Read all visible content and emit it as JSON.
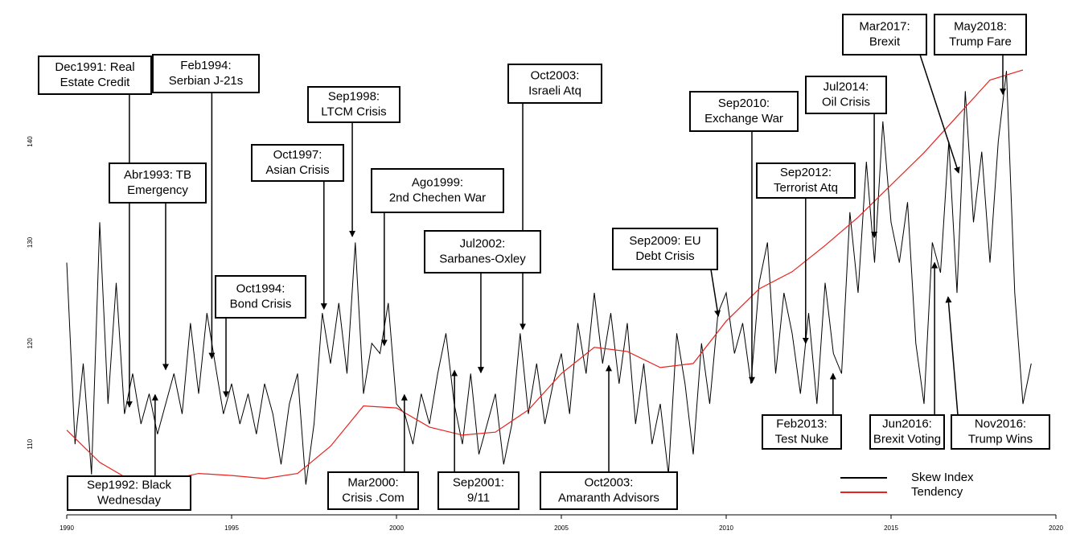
{
  "chart_data": {
    "type": "line",
    "xlim": [
      1990,
      2020
    ],
    "ylim": [
      103,
      153
    ],
    "xticks": [
      1990,
      1995,
      2000,
      2005,
      2010,
      2015,
      2020
    ],
    "yticks": [
      110,
      120,
      130,
      140
    ],
    "legend": "bottom-right",
    "series": [
      {
        "name": "Skew Index",
        "color": "#000000",
        "x": [
          1990,
          1990.25,
          1990.5,
          1990.75,
          1991,
          1991.25,
          1991.5,
          1991.75,
          1992,
          1992.25,
          1992.5,
          1992.75,
          1993,
          1993.25,
          1993.5,
          1993.75,
          1994,
          1994.25,
          1994.5,
          1994.75,
          1995,
          1995.25,
          1995.5,
          1995.75,
          1996,
          1996.25,
          1996.5,
          1996.75,
          1997,
          1997.25,
          1997.5,
          1997.75,
          1998,
          1998.25,
          1998.5,
          1998.75,
          1999,
          1999.25,
          1999.5,
          1999.75,
          2000,
          2000.25,
          2000.5,
          2000.75,
          2001,
          2001.25,
          2001.5,
          2001.75,
          2002,
          2002.25,
          2002.5,
          2002.75,
          2003,
          2003.25,
          2003.5,
          2003.75,
          2004,
          2004.25,
          2004.5,
          2004.75,
          2005,
          2005.25,
          2005.5,
          2005.75,
          2006,
          2006.25,
          2006.5,
          2006.75,
          2007,
          2007.25,
          2007.5,
          2007.75,
          2008,
          2008.25,
          2008.5,
          2008.75,
          2009,
          2009.25,
          2009.5,
          2009.75,
          2010,
          2010.25,
          2010.5,
          2010.75,
          2011,
          2011.25,
          2011.5,
          2011.75,
          2012,
          2012.25,
          2012.5,
          2012.75,
          2013,
          2013.25,
          2013.5,
          2013.75,
          2014,
          2014.25,
          2014.5,
          2014.75,
          2015,
          2015.25,
          2015.5,
          2015.75,
          2016,
          2016.25,
          2016.5,
          2016.75,
          2017,
          2017.25,
          2017.5,
          2017.75,
          2018,
          2018.25,
          2018.5,
          2018.75,
          2019,
          2019.25
        ],
        "values": [
          128,
          110,
          118,
          107,
          132,
          114,
          126,
          113,
          117,
          112,
          115,
          111,
          114,
          117,
          113,
          122,
          115,
          123,
          118,
          113,
          116,
          112,
          115,
          111,
          116,
          113,
          108,
          114,
          117,
          106,
          112,
          123,
          118,
          124,
          117,
          130,
          115,
          120,
          119,
          124,
          114,
          113,
          110,
          115,
          112,
          117,
          121,
          114,
          110,
          117,
          109,
          112,
          115,
          108,
          112,
          121,
          113,
          118,
          112,
          116,
          119,
          113,
          122,
          117,
          125,
          118,
          123,
          116,
          122,
          112,
          118,
          110,
          114,
          107,
          121,
          116,
          109,
          120,
          114,
          123,
          125,
          119,
          122,
          116,
          126,
          130,
          117,
          125,
          121,
          115,
          123,
          114,
          126,
          119,
          117,
          133,
          125,
          138,
          128,
          142,
          132,
          128,
          134,
          120,
          114,
          130,
          127,
          140,
          125,
          145,
          132,
          139,
          128,
          140,
          147,
          125,
          114,
          118
        ]
      },
      {
        "name": "Tendency",
        "color": "#e8231f",
        "x": [
          1990,
          1991,
          1992,
          1993,
          1994,
          1995,
          1996,
          1997,
          1998,
          1999,
          2000,
          2001,
          2002,
          2003,
          2004,
          2005,
          2006,
          2007,
          2008,
          2009,
          2010,
          2011,
          2012,
          2013,
          2014,
          2015,
          2016,
          2017,
          2018,
          2019
        ],
        "values": [
          111.4,
          108.2,
          106.3,
          106.4,
          107.1,
          106.9,
          106.6,
          107.1,
          109.8,
          113.8,
          113.6,
          111.7,
          110.9,
          111.2,
          113.4,
          117.0,
          119.6,
          119.2,
          117.6,
          118.0,
          122.2,
          125.4,
          127.1,
          129.7,
          132.5,
          135.7,
          138.9,
          142.5,
          146.1,
          147.1
        ]
      }
    ],
    "annotations": [
      {
        "lines": [
          "Dec1991: Real",
          "Estate Credit"
        ],
        "x": 1991.9,
        "y": 113.7
      },
      {
        "lines": [
          "Feb1994:",
          "Serbian J-21s"
        ],
        "x": 1994.4,
        "y": 118.5
      },
      {
        "lines": [
          "Abr1993: TB",
          "Emergency"
        ],
        "x": 1993.0,
        "y": 117.4
      },
      {
        "lines": [
          "Sep1998:",
          "LTCM Crisis"
        ],
        "x": 1998.66,
        "y": 130.6
      },
      {
        "lines": [
          "Oct1997:",
          "Asian Crisis"
        ],
        "x": 1997.8,
        "y": 123.4
      },
      {
        "lines": [
          "Ago1999:",
          "2nd Chechen War"
        ],
        "x": 1999.63,
        "y": 119.8
      },
      {
        "lines": [
          "Oct1994:",
          "Bond Crisis"
        ],
        "x": 1994.83,
        "y": 114.7
      },
      {
        "lines": [
          "Oct2003:",
          "Israeli Atq"
        ],
        "x": 2003.83,
        "y": 121.4
      },
      {
        "lines": [
          "Jul2002:",
          "Sarbanes-Oxley"
        ],
        "x": 2002.56,
        "y": 117.1
      },
      {
        "lines": [
          "Sep2010:",
          "Exchange War"
        ],
        "x": 2010.78,
        "y": 116.1
      },
      {
        "lines": [
          "Sep2009: EU",
          "Debt Crisis"
        ],
        "x": 2009.76,
        "y": 122.7
      },
      {
        "lines": [
          "Sep2012:",
          "Terrorist Atq"
        ],
        "x": 2012.41,
        "y": 120.0
      },
      {
        "lines": [
          "Jul2014:",
          "Oil Crisis"
        ],
        "x": 2014.49,
        "y": 130.5
      },
      {
        "lines": [
          "Mar2017:",
          "Brexit"
        ],
        "x": 2017.05,
        "y": 136.9
      },
      {
        "lines": [
          "May2018:",
          "Trump Fare"
        ],
        "x": 2018.39,
        "y": 144.7
      },
      {
        "lines": [
          "Sep1992: Black",
          "Wednesday"
        ],
        "x": 1992.68,
        "y": 114.9
      },
      {
        "lines": [
          "Mar2000:",
          "Crisis .Com"
        ],
        "x": 2000.24,
        "y": 114.9
      },
      {
        "lines": [
          "Sep2001:",
          "9/11"
        ],
        "x": 2001.76,
        "y": 117.3
      },
      {
        "lines": [
          "Oct2003:",
          "Amaranth Advisors"
        ],
        "x": 2006.44,
        "y": 117.8
      },
      {
        "lines": [
          "Feb2013:",
          "Test Nuke"
        ],
        "x": 2013.24,
        "y": 117.0
      },
      {
        "lines": [
          "Jun2016:",
          "Brexit Voting"
        ],
        "x": 2016.32,
        "y": 128.0
      },
      {
        "lines": [
          "Nov2016:",
          "Trump Wins"
        ],
        "x": 2016.73,
        "y": 124.6
      }
    ]
  }
}
